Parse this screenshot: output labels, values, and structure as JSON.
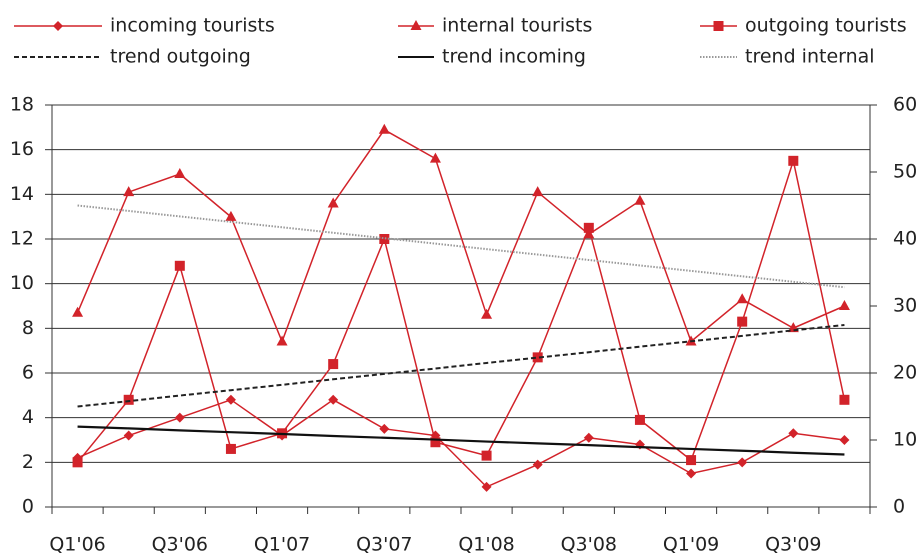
{
  "chart_data": {
    "type": "line",
    "categories": [
      "Q1'06",
      null,
      "Q3'06",
      null,
      "Q1'07",
      null,
      "Q3'07",
      null,
      "Q1'08",
      null,
      "Q3'08",
      null,
      "Q1'09",
      null,
      "Q3'09",
      null
    ],
    "ylim": [
      0,
      18
    ],
    "yticks": [
      0,
      2,
      4,
      6,
      8,
      10,
      12,
      14,
      16,
      18
    ],
    "y2lim": [
      0,
      60
    ],
    "y2ticks": [
      0,
      10,
      20,
      30,
      40,
      50,
      60
    ],
    "grid": true,
    "series": [
      {
        "name": "incoming tourists",
        "color": "#d2232a",
        "marker": "diamond",
        "values": [
          2.2,
          3.2,
          4.0,
          4.8,
          3.2,
          4.8,
          3.5,
          3.2,
          0.9,
          1.9,
          3.1,
          2.8,
          1.5,
          2.0,
          3.3,
          3.0
        ]
      },
      {
        "name": "internal tourists",
        "color": "#d2232a",
        "marker": "triangle",
        "axis": "y2",
        "values": [
          29,
          47,
          49.7,
          43.3,
          24.7,
          45.3,
          56.3,
          52,
          28.7,
          47,
          40.7,
          45.7,
          24.7,
          31,
          26.7,
          30
        ]
      },
      {
        "name": "outgoing tourists",
        "color": "#d2232a",
        "marker": "square",
        "values": [
          2.0,
          4.8,
          10.8,
          2.6,
          3.3,
          6.4,
          12.0,
          2.9,
          2.3,
          6.7,
          12.5,
          3.9,
          2.1,
          8.3,
          15.5,
          4.8
        ]
      },
      {
        "name": "trend outgoing",
        "color": "#222222",
        "dash": "dashed",
        "values": [
          4.5,
          4.74,
          4.99,
          5.23,
          5.47,
          5.72,
          5.96,
          6.2,
          6.45,
          6.69,
          6.93,
          7.18,
          7.42,
          7.66,
          7.91,
          8.15
        ]
      },
      {
        "name": "trend incoming",
        "color": "#111111",
        "dash": "solid",
        "values": [
          3.6,
          3.52,
          3.43,
          3.35,
          3.27,
          3.18,
          3.1,
          3.02,
          2.93,
          2.85,
          2.77,
          2.68,
          2.6,
          2.52,
          2.43,
          2.35
        ]
      },
      {
        "name": "trend internal",
        "color": "#999999",
        "dash": "dotted",
        "axis": "y2",
        "values": [
          45,
          44.19,
          43.37,
          42.56,
          41.75,
          40.93,
          40.12,
          39.31,
          38.49,
          37.68,
          36.87,
          36.05,
          35.24,
          34.43,
          33.61,
          32.8
        ]
      }
    ]
  }
}
